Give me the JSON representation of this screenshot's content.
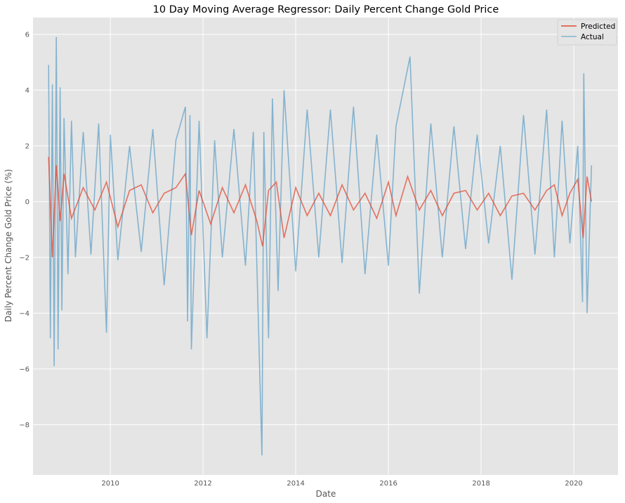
{
  "colors": {
    "background": "#e5e5e5",
    "grid": "#ffffff",
    "predicted": "#e24a33",
    "actual": "#348abd"
  },
  "chart_data": {
    "type": "line",
    "title": "10 Day Moving Average Regressor: Daily Percent Change Gold Price",
    "xlabel": "Date",
    "ylabel": "Daily Percent Change Gold Price (%)",
    "xlim": [
      "2008-05-01",
      "2020-12-15"
    ],
    "ylim": [
      -9.8,
      6.6
    ],
    "x_ticks": [
      "2010",
      "2012",
      "2014",
      "2016",
      "2018",
      "2020"
    ],
    "y_ticks": [
      -8,
      -6,
      -4,
      -2,
      0,
      2,
      4,
      6
    ],
    "y_tick_labels": [
      "−8",
      "−6",
      "−4",
      "−2",
      "0",
      "2",
      "4",
      "6"
    ],
    "grid": true,
    "legend_position": "top-right",
    "series": [
      {
        "name": "Predicted",
        "color": "#e24a33",
        "x": [
          "2008-09-01",
          "2008-10-01",
          "2008-11-01",
          "2008-12-01",
          "2009-01-01",
          "2009-03-01",
          "2009-06-01",
          "2009-09-01",
          "2009-12-01",
          "2010-03-01",
          "2010-06-01",
          "2010-09-01",
          "2010-12-01",
          "2011-03-01",
          "2011-06-01",
          "2011-08-15",
          "2011-10-01",
          "2011-12-01",
          "2012-03-01",
          "2012-06-01",
          "2012-09-01",
          "2012-12-01",
          "2013-03-01",
          "2013-04-15",
          "2013-06-01",
          "2013-08-01",
          "2013-10-01",
          "2014-01-01",
          "2014-04-01",
          "2014-07-01",
          "2014-10-01",
          "2015-01-01",
          "2015-04-01",
          "2015-07-01",
          "2015-10-01",
          "2016-01-01",
          "2016-03-01",
          "2016-06-01",
          "2016-09-01",
          "2016-12-01",
          "2017-03-01",
          "2017-06-01",
          "2017-09-01",
          "2017-12-01",
          "2018-03-01",
          "2018-06-01",
          "2018-09-01",
          "2018-12-01",
          "2019-03-01",
          "2019-06-01",
          "2019-08-01",
          "2019-10-01",
          "2019-12-01",
          "2020-02-01",
          "2020-03-15",
          "2020-04-15",
          "2020-05-20"
        ],
        "values": [
          1.6,
          -2.0,
          1.3,
          -0.7,
          1.0,
          -0.6,
          0.5,
          -0.3,
          0.7,
          -0.9,
          0.4,
          0.6,
          -0.4,
          0.3,
          0.5,
          1.0,
          -1.2,
          0.4,
          -0.8,
          0.5,
          -0.4,
          0.6,
          -0.7,
          -1.6,
          0.4,
          0.7,
          -1.3,
          0.5,
          -0.5,
          0.3,
          -0.5,
          0.6,
          -0.3,
          0.3,
          -0.6,
          0.7,
          -0.5,
          0.9,
          -0.3,
          0.4,
          -0.5,
          0.3,
          0.4,
          -0.3,
          0.3,
          -0.5,
          0.2,
          0.3,
          -0.3,
          0.4,
          0.6,
          -0.5,
          0.3,
          0.8,
          -1.3,
          0.9,
          0.0
        ]
      },
      {
        "name": "Actual",
        "color": "#348abd",
        "x": [
          "2008-09-01",
          "2008-09-15",
          "2008-10-01",
          "2008-10-15",
          "2008-11-01",
          "2008-11-15",
          "2008-12-01",
          "2008-12-15",
          "2009-01-01",
          "2009-02-01",
          "2009-03-01",
          "2009-04-01",
          "2009-06-01",
          "2009-08-01",
          "2009-10-01",
          "2009-12-01",
          "2010-01-01",
          "2010-03-01",
          "2010-06-01",
          "2010-09-01",
          "2010-12-01",
          "2011-03-01",
          "2011-06-01",
          "2011-08-15",
          "2011-09-01",
          "2011-09-20",
          "2011-10-01",
          "2011-12-01",
          "2012-02-01",
          "2012-04-01",
          "2012-06-01",
          "2012-09-01",
          "2012-12-01",
          "2013-02-01",
          "2013-04-10",
          "2013-04-25",
          "2013-06-01",
          "2013-07-01",
          "2013-08-15",
          "2013-10-01",
          "2014-01-01",
          "2014-04-01",
          "2014-07-01",
          "2014-10-01",
          "2015-01-01",
          "2015-04-01",
          "2015-07-01",
          "2015-10-01",
          "2016-01-01",
          "2016-03-01",
          "2016-06-20",
          "2016-09-01",
          "2016-12-01",
          "2017-03-01",
          "2017-06-01",
          "2017-09-01",
          "2017-12-01",
          "2018-03-01",
          "2018-06-01",
          "2018-09-01",
          "2018-12-01",
          "2019-03-01",
          "2019-06-01",
          "2019-08-01",
          "2019-10-01",
          "2019-12-01",
          "2020-02-01",
          "2020-03-10",
          "2020-03-20",
          "2020-04-15",
          "2020-05-20"
        ],
        "values": [
          4.9,
          -4.9,
          4.2,
          -5.9,
          5.9,
          -5.3,
          4.1,
          -3.9,
          3.0,
          -2.6,
          2.9,
          -2.0,
          2.5,
          -1.9,
          2.8,
          -4.7,
          2.4,
          -2.1,
          2.0,
          -1.8,
          2.6,
          -3.0,
          2.2,
          3.4,
          -4.3,
          3.1,
          -5.3,
          2.9,
          -4.9,
          2.2,
          -2.0,
          2.6,
          -2.3,
          2.5,
          -9.1,
          2.5,
          -4.9,
          3.7,
          -3.2,
          4.0,
          -2.5,
          3.3,
          -2.0,
          3.3,
          -2.2,
          3.4,
          -2.6,
          2.4,
          -2.3,
          2.7,
          5.2,
          -3.3,
          2.8,
          -2.0,
          2.7,
          -1.7,
          2.4,
          -1.5,
          2.0,
          -2.8,
          3.1,
          -1.9,
          3.3,
          -2.0,
          2.9,
          -1.5,
          2.0,
          -3.6,
          4.6,
          -4.0,
          1.3
        ]
      }
    ]
  }
}
